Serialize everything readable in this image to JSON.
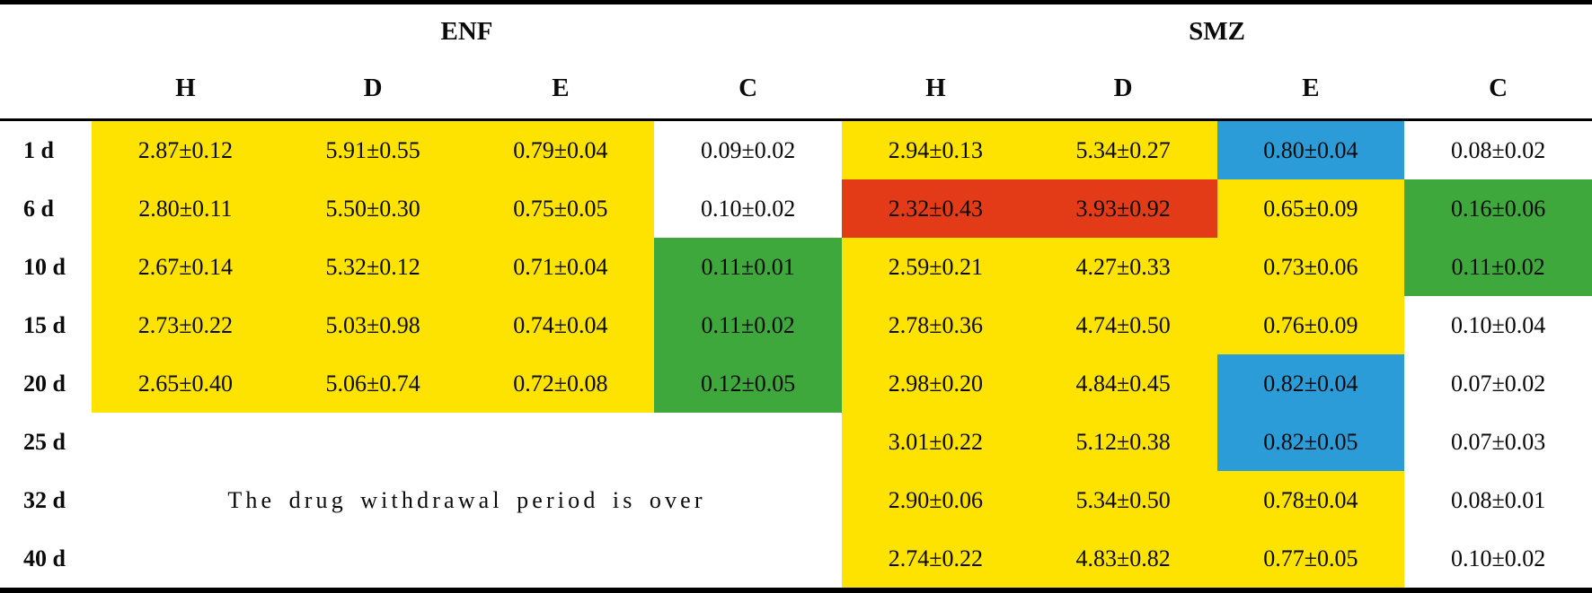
{
  "chart_data": {
    "type": "table",
    "groups": [
      {
        "label": "ENF"
      },
      {
        "label": "SMZ"
      }
    ],
    "sub_columns": [
      "H",
      "D",
      "E",
      "C"
    ],
    "row_labels": [
      "1 d",
      "6 d",
      "10 d",
      "15 d",
      "20 d",
      "25 d",
      "32 d",
      "40 d"
    ],
    "withdrawal_note": "The drug withdrawal period is over",
    "colors": {
      "yellow": "#FFE300",
      "blue": "#2B9CD8",
      "red": "#E33B17",
      "green": "#3FA83C",
      "white": "#FFFFFF"
    },
    "rows": [
      {
        "label": "1 d",
        "enf": [
          {
            "value": "2.87±0.12",
            "color": "yellow"
          },
          {
            "value": "5.91±0.55",
            "color": "yellow"
          },
          {
            "value": "0.79±0.04",
            "color": "yellow"
          },
          {
            "value": "0.09±0.02",
            "color": "white"
          }
        ],
        "smz": [
          {
            "value": "2.94±0.13",
            "color": "yellow"
          },
          {
            "value": "5.34±0.27",
            "color": "yellow"
          },
          {
            "value": "0.80±0.04",
            "color": "blue"
          },
          {
            "value": "0.08±0.02",
            "color": "white"
          }
        ]
      },
      {
        "label": "6 d",
        "enf": [
          {
            "value": "2.80±0.11",
            "color": "yellow"
          },
          {
            "value": "5.50±0.30",
            "color": "yellow"
          },
          {
            "value": "0.75±0.05",
            "color": "yellow"
          },
          {
            "value": "0.10±0.02",
            "color": "white"
          }
        ],
        "smz": [
          {
            "value": "2.32±0.43",
            "color": "red"
          },
          {
            "value": "3.93±0.92",
            "color": "red"
          },
          {
            "value": "0.65±0.09",
            "color": "yellow"
          },
          {
            "value": "0.16±0.06",
            "color": "green"
          }
        ]
      },
      {
        "label": "10 d",
        "enf": [
          {
            "value": "2.67±0.14",
            "color": "yellow"
          },
          {
            "value": "5.32±0.12",
            "color": "yellow"
          },
          {
            "value": "0.71±0.04",
            "color": "yellow"
          },
          {
            "value": "0.11±0.01",
            "color": "green"
          }
        ],
        "smz": [
          {
            "value": "2.59±0.21",
            "color": "yellow"
          },
          {
            "value": "4.27±0.33",
            "color": "yellow"
          },
          {
            "value": "0.73±0.06",
            "color": "yellow"
          },
          {
            "value": "0.11±0.02",
            "color": "green"
          }
        ]
      },
      {
        "label": "15 d",
        "enf": [
          {
            "value": "2.73±0.22",
            "color": "yellow"
          },
          {
            "value": "5.03±0.98",
            "color": "yellow"
          },
          {
            "value": "0.74±0.04",
            "color": "yellow"
          },
          {
            "value": "0.11±0.02",
            "color": "green"
          }
        ],
        "smz": [
          {
            "value": "2.78±0.36",
            "color": "yellow"
          },
          {
            "value": "4.74±0.50",
            "color": "yellow"
          },
          {
            "value": "0.76±0.09",
            "color": "yellow"
          },
          {
            "value": "0.10±0.04",
            "color": "white"
          }
        ]
      },
      {
        "label": "20 d",
        "enf": [
          {
            "value": "2.65±0.40",
            "color": "yellow"
          },
          {
            "value": "5.06±0.74",
            "color": "yellow"
          },
          {
            "value": "0.72±0.08",
            "color": "yellow"
          },
          {
            "value": "0.12±0.05",
            "color": "green"
          }
        ],
        "smz": [
          {
            "value": "2.98±0.20",
            "color": "yellow"
          },
          {
            "value": "4.84±0.45",
            "color": "yellow"
          },
          {
            "value": "0.82±0.04",
            "color": "blue"
          },
          {
            "value": "0.07±0.02",
            "color": "white"
          }
        ]
      },
      {
        "label": "25 d",
        "enf": null,
        "smz": [
          {
            "value": "3.01±0.22",
            "color": "yellow"
          },
          {
            "value": "5.12±0.38",
            "color": "yellow"
          },
          {
            "value": "0.82±0.05",
            "color": "blue"
          },
          {
            "value": "0.07±0.03",
            "color": "white"
          }
        ]
      },
      {
        "label": "32 d",
        "enf": null,
        "note_row": true,
        "smz": [
          {
            "value": "2.90±0.06",
            "color": "yellow"
          },
          {
            "value": "5.34±0.50",
            "color": "yellow"
          },
          {
            "value": "0.78±0.04",
            "color": "yellow"
          },
          {
            "value": "0.08±0.01",
            "color": "white"
          }
        ]
      },
      {
        "label": "40 d",
        "enf": null,
        "smz": [
          {
            "value": "2.74±0.22",
            "color": "yellow"
          },
          {
            "value": "4.83±0.82",
            "color": "yellow"
          },
          {
            "value": "0.77±0.05",
            "color": "yellow"
          },
          {
            "value": "0.10±0.02",
            "color": "white"
          }
        ]
      }
    ]
  }
}
